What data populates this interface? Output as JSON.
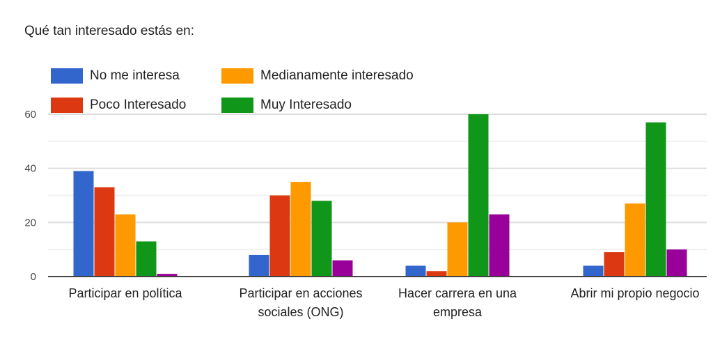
{
  "chart_data": {
    "type": "bar",
    "title": "Qué tan interesado estás en:",
    "categories": [
      [
        "Participar en política"
      ],
      [
        "Participar en acciones",
        "sociales (ONG)"
      ],
      [
        "Hacer carrera en una",
        "empresa"
      ],
      [
        "Abrir mi propio negocio"
      ]
    ],
    "series": [
      {
        "name": "No me interesa",
        "color": "#3366cc",
        "values": [
          39,
          8,
          4,
          4
        ]
      },
      {
        "name": "Poco Interesado",
        "color": "#dc3912",
        "values": [
          33,
          30,
          2,
          9
        ]
      },
      {
        "name": "Medianamente interesado",
        "color": "#ff9900",
        "values": [
          23,
          35,
          20,
          27
        ]
      },
      {
        "name": "Muy Interesado",
        "color": "#109618",
        "values": [
          13,
          28,
          60,
          57
        ]
      },
      {
        "name": null,
        "color": "#990099",
        "values": [
          1,
          6,
          23,
          10
        ]
      }
    ],
    "ylim": [
      0,
      60
    ],
    "yticks": [
      "0",
      "20",
      "40",
      "60"
    ],
    "grid": true,
    "legend_position": "top-left",
    "xlabel": "",
    "ylabel": ""
  }
}
